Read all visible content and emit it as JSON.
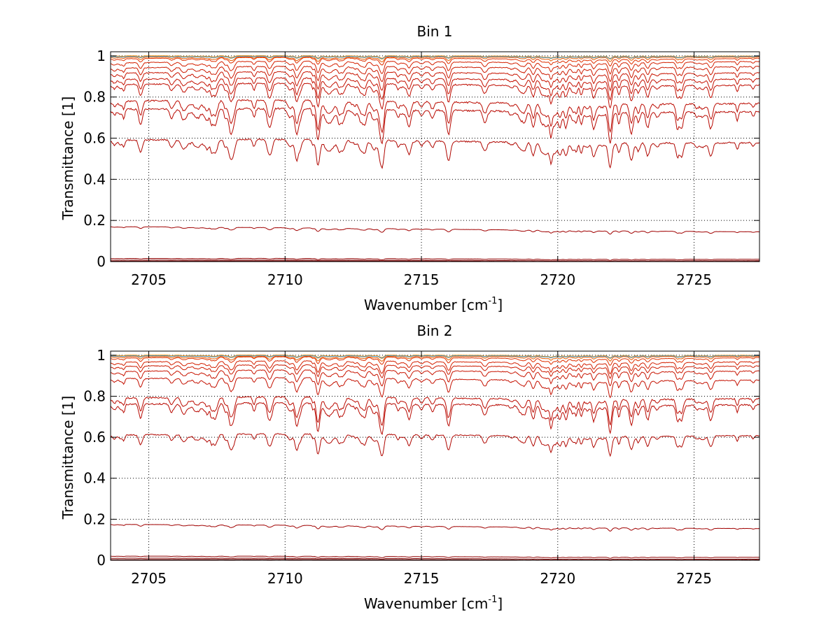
{
  "figure": {
    "background": "#ffffff",
    "axis_color": "#000000",
    "grid_color": "#000000"
  },
  "chart_data": [
    {
      "type": "line",
      "title": "Bin 1",
      "xlabel_main": "Wavenumber [cm",
      "xlabel_sup": "-1",
      "xlabel_close": "]",
      "ylabel": "Transmittance [1]",
      "xlim": [
        2703.6,
        2727.4
      ],
      "ylim": [
        0,
        1.02
      ],
      "xticks": [
        2705,
        2710,
        2715,
        2720,
        2725
      ],
      "xtick_labels": [
        "2705",
        "2710",
        "2715",
        "2720",
        "2725"
      ],
      "yticks": [
        0,
        0.2,
        0.4,
        0.6,
        0.8,
        1
      ],
      "ytick_labels": [
        "0",
        "0.2",
        "0.4",
        "0.6",
        "0.8",
        "1"
      ],
      "grid": true,
      "legend": "none",
      "series": [
        {
          "color": "#ff8c00",
          "start": 1.0,
          "end": 1.0,
          "depth": 0.004
        },
        {
          "color": "#ff9900",
          "start": 0.998,
          "end": 0.999,
          "depth": 0.005
        },
        {
          "color": "#3a9ad9",
          "start": 0.997,
          "end": 0.998,
          "depth": 0.004
        },
        {
          "color": "#e65c00",
          "start": 0.993,
          "end": 0.995,
          "depth": 0.008
        },
        {
          "color": "#e03000",
          "start": 0.985,
          "end": 0.99,
          "depth": 0.012
        },
        {
          "color": "#d42000",
          "start": 0.965,
          "end": 0.975,
          "depth": 0.02
        },
        {
          "color": "#cc1a00",
          "start": 0.94,
          "end": 0.95,
          "depth": 0.025
        },
        {
          "color": "#c81400",
          "start": 0.915,
          "end": 0.92,
          "depth": 0.03
        },
        {
          "color": "#c41000",
          "start": 0.885,
          "end": 0.89,
          "depth": 0.035
        },
        {
          "color": "#c00c00",
          "start": 0.86,
          "end": 0.86,
          "depth": 0.04
        },
        {
          "color": "#bb0a00",
          "start": 0.78,
          "end": 0.77,
          "depth": 0.05
        },
        {
          "color": "#b80800",
          "start": 0.74,
          "end": 0.73,
          "depth": 0.055
        },
        {
          "color": "#b00600",
          "start": 0.59,
          "end": 0.58,
          "depth": 0.045
        },
        {
          "color": "#a00000",
          "start": 0.17,
          "end": 0.145,
          "depth": 0.006
        },
        {
          "color": "#900000",
          "start": 0.015,
          "end": 0.012,
          "depth": 0.002
        },
        {
          "color": "#800000",
          "start": 0.007,
          "end": 0.005,
          "depth": 0.001
        },
        {
          "color": "#700000",
          "start": 0.002,
          "end": 0.002,
          "depth": 0.0005
        }
      ]
    },
    {
      "type": "line",
      "title": "Bin 2",
      "xlabel_main": "Wavenumber [cm",
      "xlabel_sup": "-1",
      "xlabel_close": "]",
      "ylabel": "Transmittance [1]",
      "xlim": [
        2703.6,
        2727.4
      ],
      "ylim": [
        0,
        1.02
      ],
      "xticks": [
        2705,
        2710,
        2715,
        2720,
        2725
      ],
      "xtick_labels": [
        "2705",
        "2710",
        "2715",
        "2720",
        "2725"
      ],
      "yticks": [
        0,
        0.2,
        0.4,
        0.6,
        0.8,
        1
      ],
      "ytick_labels": [
        "0",
        "0.2",
        "0.4",
        "0.6",
        "0.8",
        "1"
      ],
      "grid": true,
      "legend": "none",
      "series": [
        {
          "color": "#ff8c00",
          "start": 1.0,
          "end": 1.0,
          "depth": 0.004
        },
        {
          "color": "#ff9900",
          "start": 0.998,
          "end": 0.999,
          "depth": 0.005
        },
        {
          "color": "#3a9ad9",
          "start": 0.997,
          "end": 0.998,
          "depth": 0.004
        },
        {
          "color": "#e65c00",
          "start": 0.993,
          "end": 0.995,
          "depth": 0.008
        },
        {
          "color": "#e03000",
          "start": 0.985,
          "end": 0.99,
          "depth": 0.012
        },
        {
          "color": "#d42000",
          "start": 0.965,
          "end": 0.97,
          "depth": 0.02
        },
        {
          "color": "#cc1a00",
          "start": 0.945,
          "end": 0.95,
          "depth": 0.02
        },
        {
          "color": "#c81400",
          "start": 0.92,
          "end": 0.925,
          "depth": 0.025
        },
        {
          "color": "#c41000",
          "start": 0.885,
          "end": 0.88,
          "depth": 0.03
        },
        {
          "color": "#bb0a00",
          "start": 0.79,
          "end": 0.79,
          "depth": 0.045
        },
        {
          "color": "#b80800",
          "start": 0.76,
          "end": 0.76,
          "depth": 0.05
        },
        {
          "color": "#b00600",
          "start": 0.61,
          "end": 0.61,
          "depth": 0.035
        },
        {
          "color": "#a00000",
          "start": 0.175,
          "end": 0.155,
          "depth": 0.006
        },
        {
          "color": "#900000",
          "start": 0.02,
          "end": 0.015,
          "depth": 0.002
        },
        {
          "color": "#800000",
          "start": 0.01,
          "end": 0.006,
          "depth": 0.001
        },
        {
          "color": "#700000",
          "start": 0.003,
          "end": 0.002,
          "depth": 0.0005
        }
      ]
    }
  ]
}
